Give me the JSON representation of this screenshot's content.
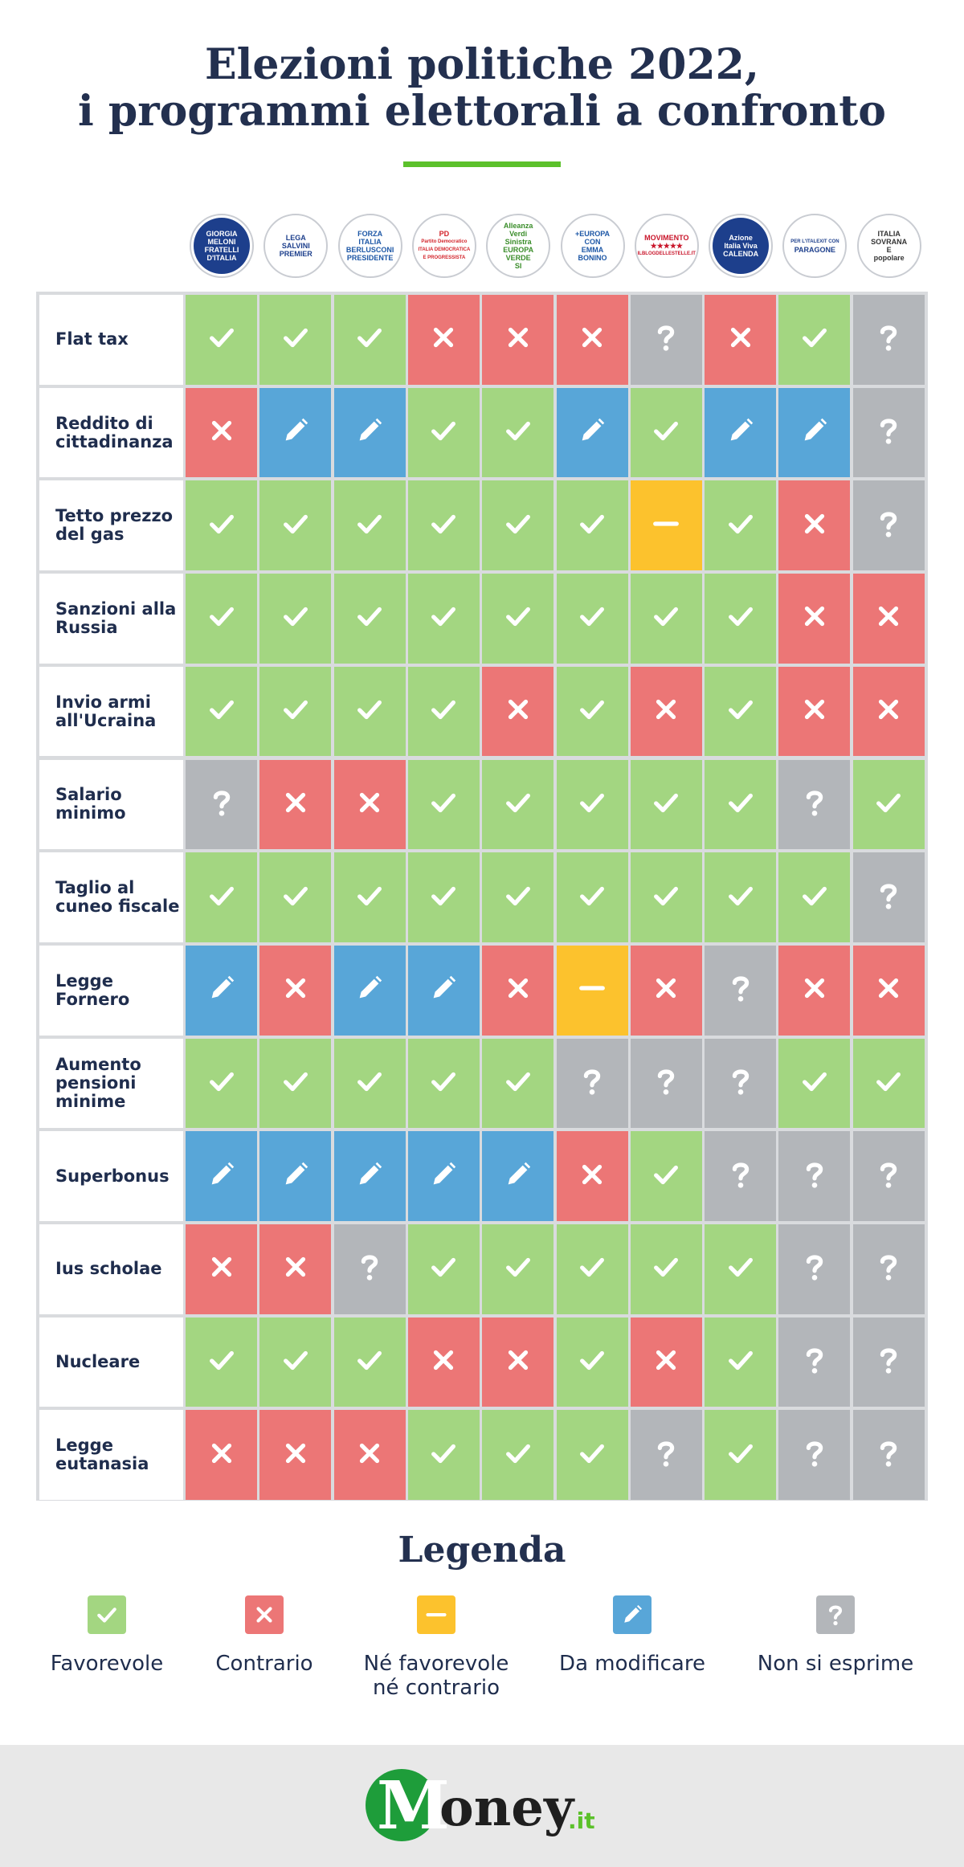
{
  "title": {
    "line1": "Elezioni politiche 2022,",
    "line2": "i programmi elettorali a confronto"
  },
  "colors": {
    "favorevole": "#a3d681",
    "contrario": "#ec7676",
    "neutrale": "#fcc22d",
    "modificare": "#58a6d8",
    "non_si_esprime": "#b3b6ba",
    "title": "#23304f",
    "accent": "#5cc12b"
  },
  "parties": [
    {
      "lines": [
        "GIORGIA",
        "MELONI",
        "FRATELLI",
        "D'ITALIA"
      ],
      "bg": "#1d3f8c",
      "fg": "#ffffff"
    },
    {
      "lines": [
        "LEGA",
        "SALVINI",
        "PREMIER"
      ],
      "bg": "#ffffff",
      "fg": "#1d3f8c"
    },
    {
      "lines": [
        "FORZA",
        "ITALIA",
        "BERLUSCONI",
        "PRESIDENTE"
      ],
      "bg": "#ffffff",
      "fg": "#1d57a6"
    },
    {
      "lines": [
        "PD",
        "Partito Democratico",
        "ITALIA DEMOCRATICA",
        "E PROGRESSISTA"
      ],
      "bg": "#ffffff",
      "fg": "#d3232a"
    },
    {
      "lines": [
        "Alleanza",
        "Verdi",
        "Sinistra",
        "EUROPA VERDE",
        "SI"
      ],
      "bg": "#ffffff",
      "fg": "#3a8d2a"
    },
    {
      "lines": [
        "+EUROPA",
        "CON",
        "EMMA",
        "BONINO"
      ],
      "bg": "#ffffff",
      "fg": "#1d57a6"
    },
    {
      "lines": [
        "MOVIMENTO",
        "★★★★★",
        "ILBLOGDELLESTELLE.IT"
      ],
      "bg": "#ffffff",
      "fg": "#c9162b"
    },
    {
      "lines": [
        "Azione",
        "Italia Viva",
        "CALENDA"
      ],
      "bg": "#1d3f8c",
      "fg": "#ffffff"
    },
    {
      "lines": [
        "PER L'ITALEXIT CON",
        "PARAGONE"
      ],
      "bg": "#ffffff",
      "fg": "#1d3f8c"
    },
    {
      "lines": [
        "ITALIA",
        "SOVRANA",
        "E",
        "popolare"
      ],
      "bg": "#ffffff",
      "fg": "#333333"
    }
  ],
  "rows": [
    {
      "label": "Flat tax",
      "values": [
        "Y",
        "Y",
        "Y",
        "N",
        "N",
        "N",
        "Q",
        "N",
        "Y",
        "Q"
      ]
    },
    {
      "label": "Reddito di cittadinanza",
      "values": [
        "N",
        "M",
        "M",
        "Y",
        "Y",
        "M",
        "Y",
        "M",
        "M",
        "Q"
      ]
    },
    {
      "label": "Tetto prezzo del gas",
      "values": [
        "Y",
        "Y",
        "Y",
        "Y",
        "Y",
        "Y",
        "X",
        "Y",
        "N",
        "Q"
      ]
    },
    {
      "label": "Sanzioni alla Russia",
      "values": [
        "Y",
        "Y",
        "Y",
        "Y",
        "Y",
        "Y",
        "Y",
        "Y",
        "N",
        "N"
      ]
    },
    {
      "label": "Invio armi all'Ucraina",
      "values": [
        "Y",
        "Y",
        "Y",
        "Y",
        "N",
        "Y",
        "N",
        "Y",
        "N",
        "N"
      ]
    },
    {
      "label": "Salario minimo",
      "values": [
        "Q",
        "N",
        "N",
        "Y",
        "Y",
        "Y",
        "Y",
        "Y",
        "Q",
        "Y"
      ]
    },
    {
      "label": "Taglio al cuneo fiscale",
      "values": [
        "Y",
        "Y",
        "Y",
        "Y",
        "Y",
        "Y",
        "Y",
        "Y",
        "Y",
        "Q"
      ]
    },
    {
      "label": "Legge Fornero",
      "values": [
        "M",
        "N",
        "M",
        "M",
        "N",
        "X",
        "N",
        "Q",
        "N",
        "N"
      ]
    },
    {
      "label": "Aumento pensioni minime",
      "values": [
        "Y",
        "Y",
        "Y",
        "Y",
        "Y",
        "Q",
        "Q",
        "Q",
        "Y",
        "Y"
      ]
    },
    {
      "label": "Superbonus",
      "values": [
        "M",
        "M",
        "M",
        "M",
        "M",
        "N",
        "Y",
        "Q",
        "Q",
        "Q"
      ]
    },
    {
      "label": "Ius scholae",
      "values": [
        "N",
        "N",
        "Q",
        "Y",
        "Y",
        "Y",
        "Y",
        "Y",
        "Q",
        "Q"
      ]
    },
    {
      "label": "Nucleare",
      "values": [
        "Y",
        "Y",
        "Y",
        "N",
        "N",
        "Y",
        "N",
        "Y",
        "Q",
        "Q"
      ]
    },
    {
      "label": "Legge eutanasia",
      "values": [
        "N",
        "N",
        "N",
        "Y",
        "Y",
        "Y",
        "Q",
        "Y",
        "Q",
        "Q"
      ]
    }
  ],
  "legend": {
    "title": "Legenda",
    "items": [
      {
        "key": "Y",
        "label": "Favorevole",
        "icon": "check-icon"
      },
      {
        "key": "N",
        "label": "Contrario",
        "icon": "cross-icon"
      },
      {
        "key": "X",
        "label": "Né favorevole né contrario",
        "icon": "dash-icon"
      },
      {
        "key": "M",
        "label": "Da modificare",
        "icon": "pencil-icon"
      },
      {
        "key": "Q",
        "label": "Non si esprime",
        "icon": "question-icon"
      }
    ]
  },
  "footer": {
    "brand_m": "M",
    "brand_rest": "oney",
    "brand_tld": ".it"
  }
}
